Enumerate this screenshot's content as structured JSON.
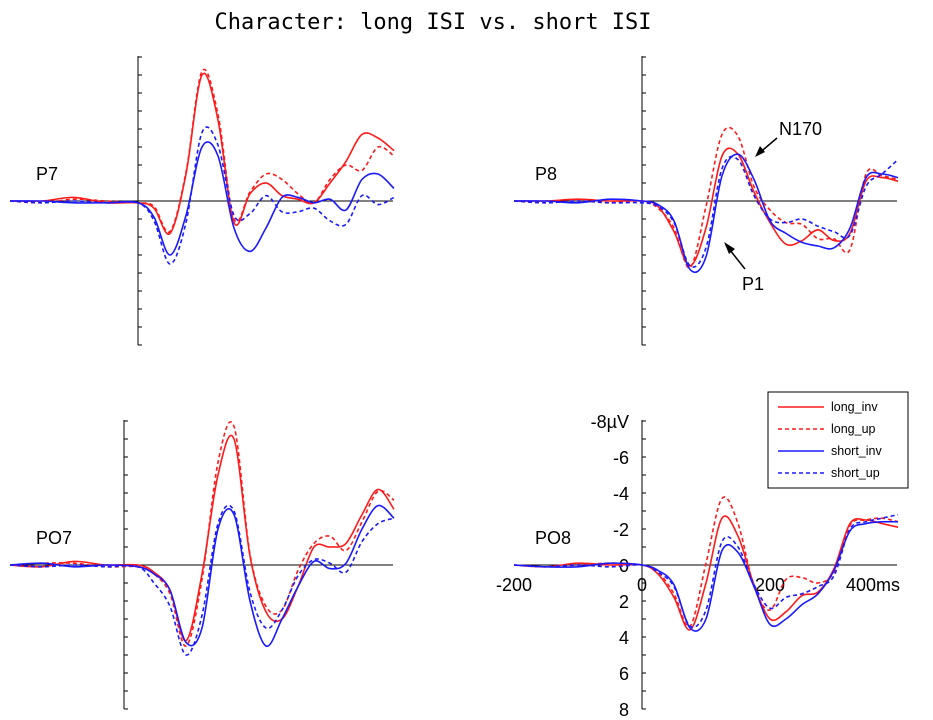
{
  "title": "Character: long ISI vs. short ISI",
  "legend": [
    {
      "name": "long_inv",
      "color": "#ff1a1a",
      "dash": "solid"
    },
    {
      "name": "long_up",
      "color": "#ff1a1a",
      "dash": "dashed"
    },
    {
      "name": "short_inv",
      "color": "#1a1aff",
      "dash": "solid"
    },
    {
      "name": "short_up",
      "color": "#1a1aff",
      "dash": "dashed"
    }
  ],
  "scale": {
    "y_unit_label": "-8µV",
    "y_tick_labels": [
      "-6",
      "-4",
      "-2",
      "0",
      "2",
      "4",
      "6",
      "8"
    ],
    "x_tick_labels": [
      "-200",
      "0",
      "200",
      "400ms"
    ]
  },
  "chart_data": {
    "type": "line",
    "xlabel": "",
    "ylabel": "",
    "x_unit": "ms",
    "y_unit": "µV",
    "xlim": [
      -200,
      400
    ],
    "ylim": [
      -8,
      8
    ],
    "y_inverted": true,
    "grid": false,
    "legend_position": "top-right",
    "x": [
      -200,
      -150,
      -100,
      -50,
      0,
      25,
      50,
      75,
      100,
      125,
      150,
      175,
      200,
      225,
      250,
      275,
      300,
      325,
      350,
      375,
      400
    ],
    "panels": [
      {
        "label": "P7",
        "annotations": [],
        "series": [
          {
            "name": "long_inv",
            "values": [
              0.0,
              0.0,
              -0.2,
              0.1,
              0.1,
              0.4,
              1.8,
              -1.5,
              -7.0,
              -4.5,
              1.2,
              -0.4,
              -1.0,
              -0.3,
              -0.1,
              0.1,
              -1.0,
              -2.2,
              -3.7,
              -3.5,
              -2.8
            ]
          },
          {
            "name": "long_up",
            "values": [
              0.0,
              0.1,
              -0.1,
              0.0,
              0.1,
              0.3,
              1.7,
              -1.6,
              -7.2,
              -4.8,
              1.0,
              -0.5,
              -1.5,
              -1.2,
              -0.4,
              0.1,
              -1.2,
              -2.0,
              -1.7,
              -3.0,
              -2.5
            ]
          },
          {
            "name": "short_inv",
            "values": [
              0.0,
              0.0,
              0.1,
              0.1,
              0.1,
              0.9,
              3.0,
              0.8,
              -3.0,
              -2.5,
              1.5,
              2.8,
              1.5,
              -0.2,
              -0.2,
              0.1,
              -0.1,
              0.5,
              -1.2,
              -1.5,
              -0.7
            ]
          },
          {
            "name": "short_up",
            "values": [
              0.0,
              0.1,
              0.0,
              0.1,
              0.1,
              1.1,
              3.5,
              1.2,
              -3.8,
              -3.1,
              0.8,
              0.7,
              -0.3,
              0.6,
              0.6,
              0.4,
              1.1,
              1.3,
              -0.3,
              0.2,
              -0.2
            ]
          }
        ]
      },
      {
        "label": "P8",
        "annotations": [
          "N170",
          "P1"
        ],
        "series": [
          {
            "name": "long_inv",
            "values": [
              0.0,
              0.0,
              -0.1,
              0.0,
              0.0,
              0.3,
              1.7,
              3.6,
              1.5,
              -2.5,
              -2.6,
              -0.5,
              1.2,
              2.4,
              2.2,
              1.6,
              2.2,
              1.8,
              -1.1,
              -1.3,
              -1.1
            ]
          },
          {
            "name": "long_up",
            "values": [
              0.0,
              0.1,
              0.0,
              0.1,
              0.0,
              0.4,
              1.5,
              3.7,
              0.3,
              -3.7,
              -3.6,
              -0.8,
              0.5,
              1.2,
              1.3,
              2.1,
              2.1,
              2.7,
              -1.5,
              -1.4,
              -1.2
            ]
          },
          {
            "name": "short_inv",
            "values": [
              0.0,
              0.0,
              0.1,
              -0.1,
              0.0,
              0.2,
              1.1,
              3.8,
              3.1,
              -1.4,
              -2.6,
              -1.2,
              1.1,
              1.8,
              2.3,
              2.5,
              2.6,
              1.5,
              -1.3,
              -1.5,
              -1.3
            ]
          },
          {
            "name": "short_up",
            "values": [
              0.0,
              0.1,
              0.0,
              0.1,
              0.1,
              0.3,
              1.2,
              3.6,
              2.6,
              -1.8,
              -2.3,
              -0.3,
              1.0,
              1.2,
              1.0,
              1.4,
              1.7,
              1.9,
              -0.8,
              -1.5,
              -2.3
            ]
          }
        ]
      },
      {
        "label": "PO7",
        "annotations": [],
        "series": [
          {
            "name": "long_inv",
            "values": [
              0.0,
              0.1,
              -0.2,
              0.0,
              0.0,
              0.4,
              1.4,
              4.2,
              0.5,
              -5.0,
              -7.0,
              -0.5,
              2.6,
              3.0,
              1.2,
              -1.0,
              -1.0,
              -1.2,
              -2.8,
              -4.2,
              -3.1
            ]
          },
          {
            "name": "long_up",
            "values": [
              0.0,
              -0.1,
              -0.1,
              0.1,
              0.1,
              0.5,
              1.6,
              4.5,
              0.8,
              -5.7,
              -7.7,
              -0.6,
              2.3,
              2.5,
              0.3,
              -1.2,
              -1.6,
              -0.8,
              -2.4,
              -4.1,
              -3.6
            ]
          },
          {
            "name": "short_inv",
            "values": [
              0.0,
              -0.1,
              0.1,
              0.0,
              0.1,
              0.5,
              1.4,
              4.3,
              3.5,
              -2.0,
              -2.8,
              2.0,
              4.5,
              3.0,
              1.2,
              -0.2,
              0.2,
              -0.1,
              -2.0,
              -3.3,
              -2.6
            ]
          },
          {
            "name": "short_up",
            "values": [
              0.0,
              0.1,
              0.0,
              0.1,
              0.1,
              1.0,
              2.3,
              5.0,
              2.8,
              -2.3,
              -3.0,
              1.5,
              3.5,
              2.5,
              0.6,
              -0.3,
              -0.1,
              0.4,
              -1.3,
              -2.3,
              -2.6
            ]
          }
        ]
      },
      {
        "label": "PO8",
        "annotations": [],
        "series": [
          {
            "name": "long_inv",
            "values": [
              0.0,
              0.1,
              -0.1,
              0.0,
              0.0,
              0.5,
              1.8,
              3.6,
              1.0,
              -2.6,
              -1.6,
              1.1,
              3.0,
              2.6,
              1.7,
              1.5,
              0.2,
              -2.3,
              -2.5,
              -2.3,
              -2.1
            ]
          },
          {
            "name": "long_up",
            "values": [
              0.0,
              0.1,
              0.0,
              -0.1,
              0.0,
              0.4,
              1.6,
              3.4,
              -0.1,
              -3.7,
              -2.3,
              1.2,
              2.5,
              0.8,
              0.7,
              1.0,
              0.4,
              -2.2,
              -2.5,
              -2.6,
              -2.4
            ]
          },
          {
            "name": "short_inv",
            "values": [
              0.0,
              0.1,
              0.1,
              -0.1,
              0.0,
              0.3,
              1.1,
              3.5,
              3.0,
              -0.8,
              -0.7,
              1.2,
              3.3,
              3.0,
              2.2,
              1.6,
              0.3,
              -1.9,
              -2.3,
              -2.4,
              -2.4
            ]
          },
          {
            "name": "short_up",
            "values": [
              0.0,
              0.1,
              0.0,
              0.1,
              0.0,
              0.4,
              1.2,
              3.4,
              2.5,
              -1.3,
              -1.0,
              1.1,
              2.4,
              1.8,
              1.6,
              1.2,
              0.6,
              -2.0,
              -2.4,
              -2.6,
              -2.8
            ]
          }
        ]
      }
    ]
  }
}
